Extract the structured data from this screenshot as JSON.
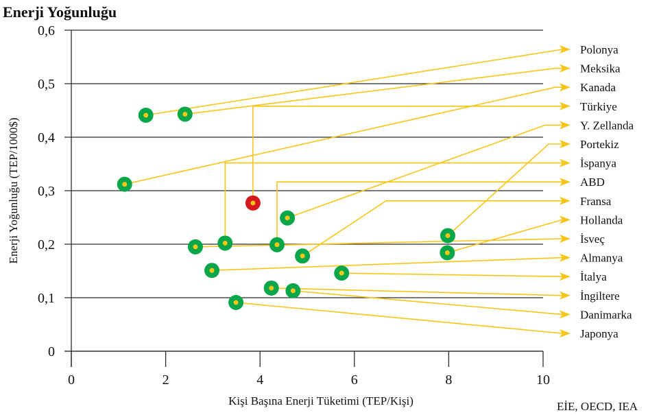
{
  "chart_data": {
    "type": "scatter",
    "title": "Enerji Yoğunluğu",
    "xlabel": "Kişi Başına Enerji Tüketimi (TEP/Kişi)",
    "ylabel": "Enerji Yoğunluğu  (TEP/1000$)",
    "source": "EİE, OECD, IEA",
    "xlim": [
      0,
      10
    ],
    "ylim": [
      0,
      0.6
    ],
    "xticks": [
      {
        "value": 0,
        "label": "0"
      },
      {
        "value": 2,
        "label": "2"
      },
      {
        "value": 4,
        "label": "4"
      },
      {
        "value": 6,
        "label": "6"
      },
      {
        "value": 8,
        "label": "8"
      },
      {
        "value": 10,
        "label": "10"
      }
    ],
    "yticks": [
      {
        "value": 0,
        "label": "0"
      },
      {
        "value": 0.1,
        "label": "0,1"
      },
      {
        "value": 0.2,
        "label": "0,2"
      },
      {
        "value": 0.3,
        "label": "0,3"
      },
      {
        "value": 0.4,
        "label": "0,4"
      },
      {
        "value": 0.5,
        "label": "0,5"
      },
      {
        "value": 0.6,
        "label": "0,6"
      }
    ],
    "grid": true,
    "colors": {
      "point": "#0aa64a",
      "highlight": "#d7191f",
      "leader": "#f7c518",
      "grid": "#2b2b2b"
    },
    "points": [
      {
        "country": "Polonya",
        "x": 1.58,
        "y": 0.441,
        "highlight": false,
        "route": "direct"
      },
      {
        "country": "Meksika",
        "x": 2.41,
        "y": 0.443,
        "highlight": false,
        "route": "direct"
      },
      {
        "country": "Kanada",
        "x": 1.13,
        "y": 0.312,
        "highlight": false,
        "route": "direct"
      },
      {
        "country": "Türkiye",
        "x": 3.85,
        "y": 0.277,
        "highlight": true,
        "route": "elbow"
      },
      {
        "country": "Y. Zellanda",
        "x": 4.58,
        "y": 0.249,
        "highlight": false,
        "route": "direct"
      },
      {
        "country": "Portekiz",
        "x": 7.98,
        "y": 0.216,
        "highlight": false,
        "route": "direct"
      },
      {
        "country": "İspanya",
        "x": 3.26,
        "y": 0.202,
        "highlight": false,
        "route": "elbow"
      },
      {
        "country": "ABD",
        "x": 4.36,
        "y": 0.199,
        "highlight": false,
        "route": "elbow"
      },
      {
        "country": "Fransa",
        "x": 4.9,
        "y": 0.178,
        "highlight": false,
        "route": "diag-elbow"
      },
      {
        "country": "Hollanda",
        "x": 7.97,
        "y": 0.184,
        "highlight": false,
        "route": "direct"
      },
      {
        "country": "İsveç",
        "x": 2.63,
        "y": 0.195,
        "highlight": false,
        "route": "direct"
      },
      {
        "country": "Almanya",
        "x": 2.98,
        "y": 0.151,
        "highlight": false,
        "route": "direct"
      },
      {
        "country": "İtalya",
        "x": 5.73,
        "y": 0.146,
        "highlight": false,
        "route": "direct"
      },
      {
        "country": "İngiltere",
        "x": 4.24,
        "y": 0.118,
        "highlight": false,
        "route": "direct"
      },
      {
        "country": "Danimarka",
        "x": 4.7,
        "y": 0.113,
        "highlight": false,
        "route": "direct"
      },
      {
        "country": "Japonya",
        "x": 3.49,
        "y": 0.091,
        "highlight": false,
        "route": "direct"
      }
    ]
  }
}
